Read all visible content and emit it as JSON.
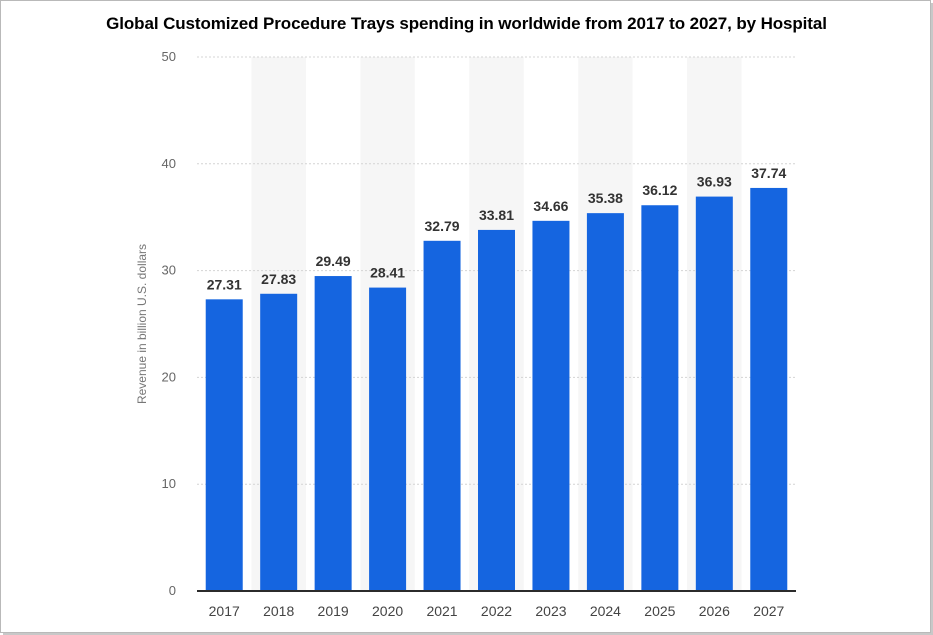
{
  "chart_data": {
    "type": "bar",
    "title": "Global Customized Procedure Trays spending in worldwide from 2017 to 2027, by Hospital",
    "xlabel": "",
    "ylabel": "Revenue in billion U.S. dollars",
    "categories": [
      "2017",
      "2018",
      "2019",
      "2020",
      "2021",
      "2022",
      "2023",
      "2024",
      "2025",
      "2026",
      "2027"
    ],
    "values": [
      27.31,
      27.83,
      29.49,
      28.41,
      32.79,
      33.81,
      34.66,
      35.38,
      36.12,
      36.93,
      37.74
    ],
    "value_labels": [
      "27.31",
      "27.83",
      "29.49",
      "28.41",
      "32.79",
      "33.81",
      "34.66",
      "35.38",
      "36.12",
      "36.93",
      "37.74"
    ],
    "ylim": [
      0,
      50
    ],
    "yticks": [
      "0",
      "10",
      "20",
      "30",
      "40",
      "50"
    ],
    "grid": true,
    "bar_color": "#1565e0"
  }
}
